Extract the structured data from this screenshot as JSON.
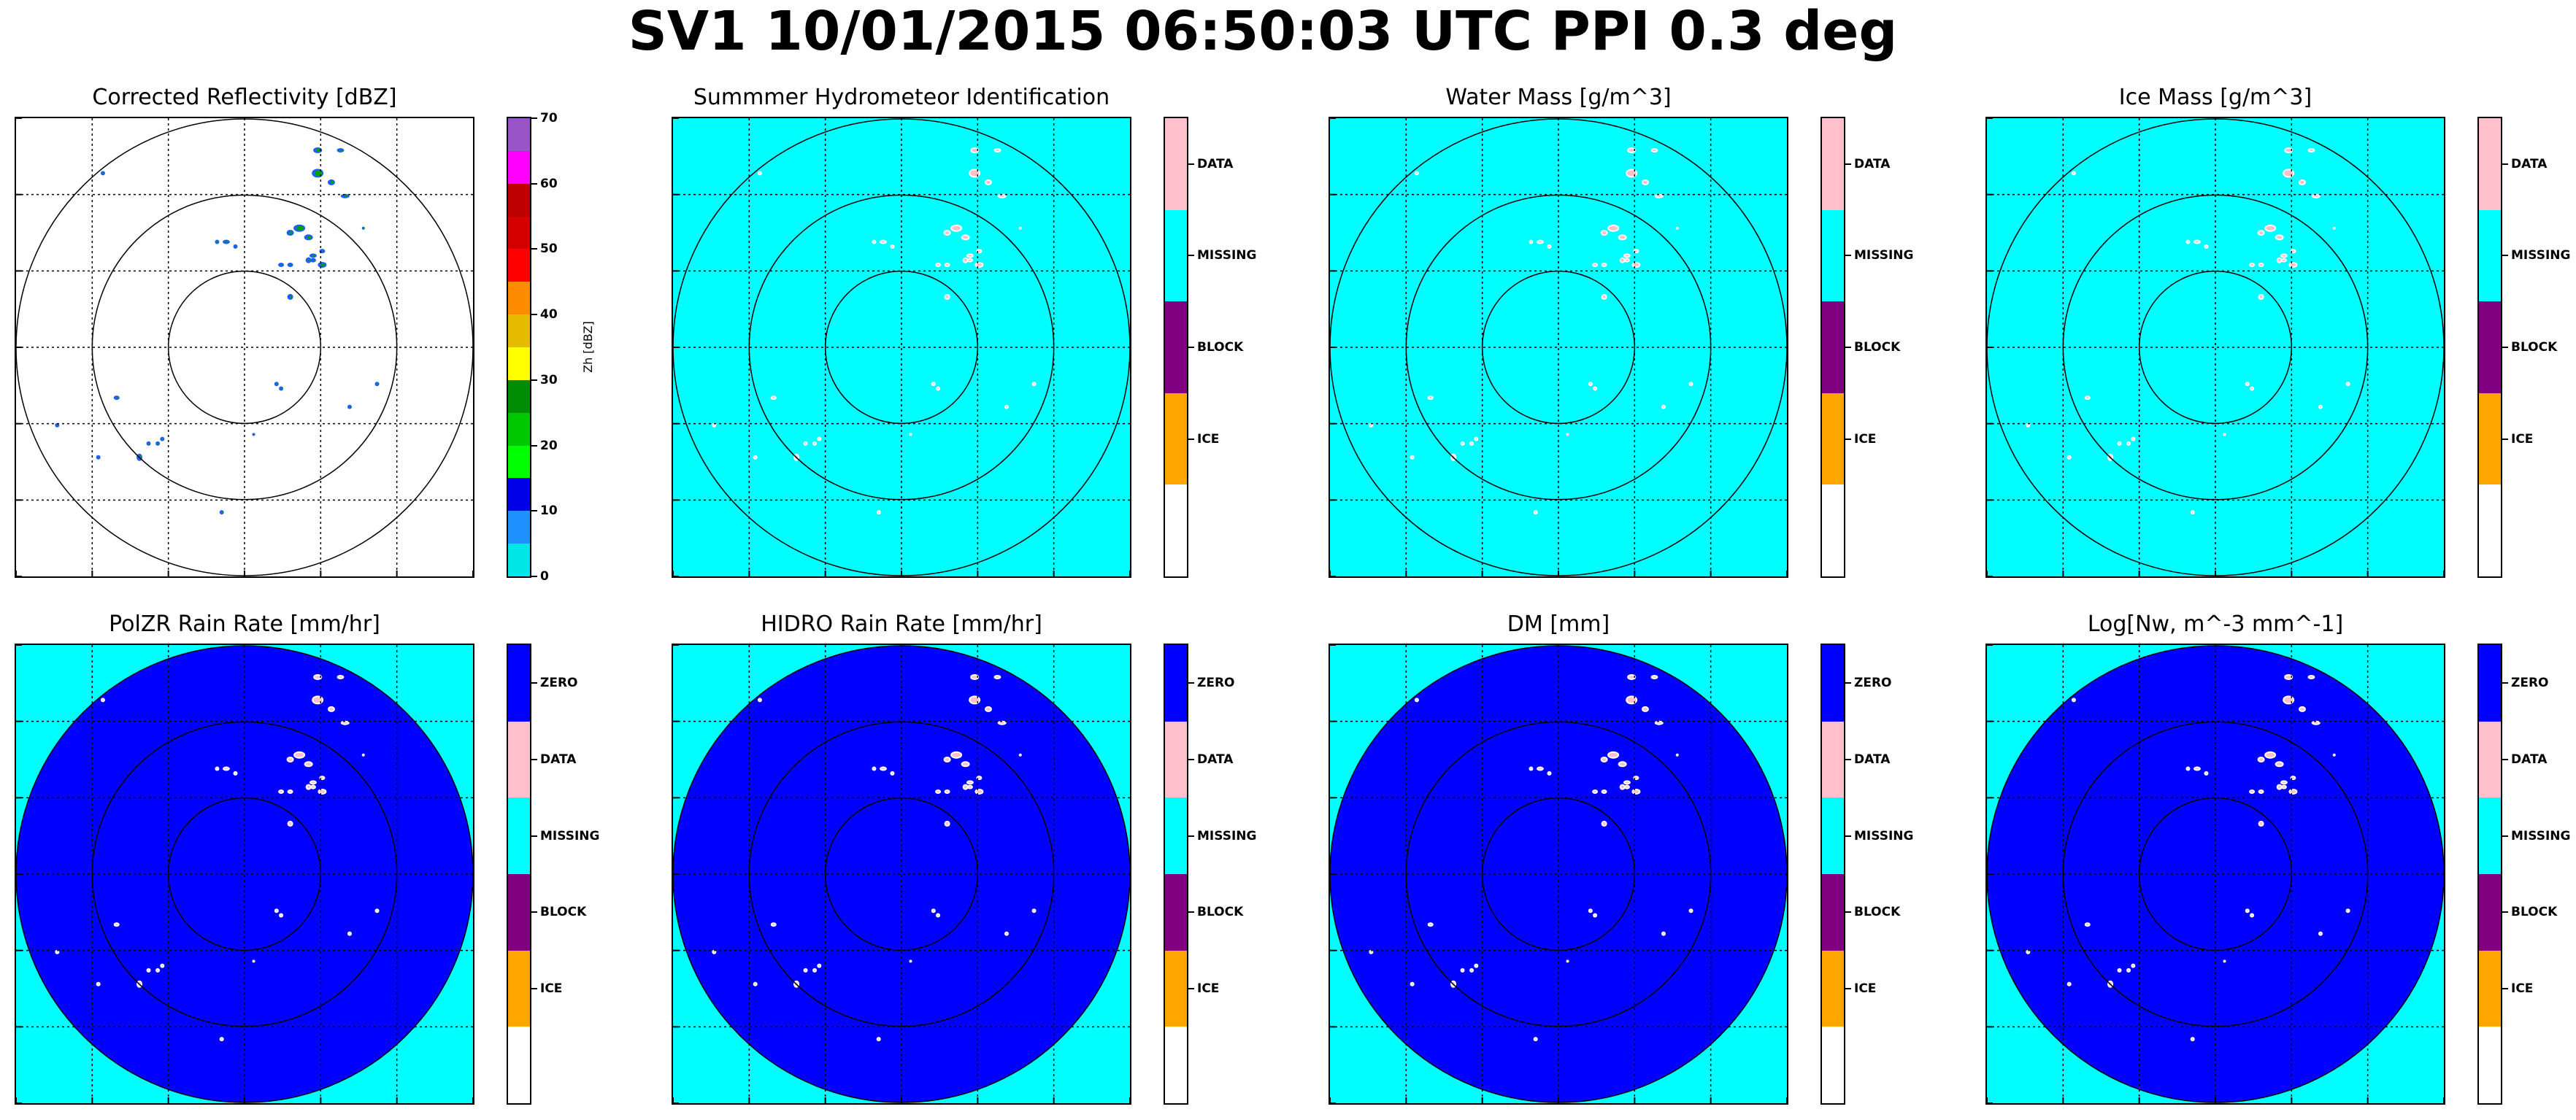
{
  "suptitle": "SV1 10/01/2015 06:50:03 UTC PPI 0.3 deg",
  "colors": {
    "cyan": "#00ffff",
    "blue": "#0000ff",
    "pink": "#ffc0cb",
    "purple": "#800080",
    "orange": "#ffa500",
    "white": "#ffffff"
  },
  "panels": [
    {
      "title": "Corrected Reflectivity [dBZ]",
      "background": "reflectivity",
      "colorbar": {
        "type": "continuous",
        "label": "Zh [dBZ]",
        "ticks": [
          "0",
          "10",
          "20",
          "30",
          "40",
          "50",
          "60",
          "70"
        ],
        "colors": [
          "#00e5e5",
          "#1e90ff",
          "#0000e6",
          "#00ff00",
          "#00c800",
          "#008c00",
          "#ffff00",
          "#e5bc00",
          "#ff8c00",
          "#ff0000",
          "#d40000",
          "#bd0000",
          "#ff00ff",
          "#9955c8"
        ]
      }
    },
    {
      "title": "Summmer Hydrometeor Identification",
      "background": "cyan",
      "colorbar": {
        "type": "category",
        "labels": [
          "DATA",
          "MISSING",
          "BLOCK",
          "ICE",
          ""
        ],
        "colors": [
          "#ffc0cb",
          "#00ffff",
          "#800080",
          "#ffa500",
          "#ffffff"
        ]
      }
    },
    {
      "title": "Water Mass [g/m^3]",
      "background": "cyan",
      "colorbar": {
        "type": "category",
        "labels": [
          "DATA",
          "MISSING",
          "BLOCK",
          "ICE",
          ""
        ],
        "colors": [
          "#ffc0cb",
          "#00ffff",
          "#800080",
          "#ffa500",
          "#ffffff"
        ]
      }
    },
    {
      "title": "Ice Mass [g/m^3]",
      "background": "cyan",
      "colorbar": {
        "type": "category",
        "labels": [
          "DATA",
          "MISSING",
          "BLOCK",
          "ICE",
          ""
        ],
        "colors": [
          "#ffc0cb",
          "#00ffff",
          "#800080",
          "#ffa500",
          "#ffffff"
        ]
      }
    },
    {
      "title": "PolZR Rain Rate [mm/hr]",
      "background": "blue-disc",
      "colorbar": {
        "type": "category",
        "labels": [
          "ZERO",
          "DATA",
          "MISSING",
          "BLOCK",
          "ICE",
          ""
        ],
        "colors": [
          "#0000ff",
          "#ffc0cb",
          "#00ffff",
          "#800080",
          "#ffa500",
          "#ffffff"
        ]
      }
    },
    {
      "title": "HIDRO Rain Rate [mm/hr]",
      "background": "blue-disc",
      "colorbar": {
        "type": "category",
        "labels": [
          "ZERO",
          "DATA",
          "MISSING",
          "BLOCK",
          "ICE",
          ""
        ],
        "colors": [
          "#0000ff",
          "#ffc0cb",
          "#00ffff",
          "#800080",
          "#ffa500",
          "#ffffff"
        ]
      }
    },
    {
      "title": "DM [mm]",
      "background": "blue-disc",
      "colorbar": {
        "type": "category",
        "labels": [
          "ZERO",
          "DATA",
          "MISSING",
          "BLOCK",
          "ICE",
          ""
        ],
        "colors": [
          "#0000ff",
          "#ffc0cb",
          "#00ffff",
          "#800080",
          "#ffa500",
          "#ffffff"
        ]
      }
    },
    {
      "title": "Log[Nw, m^-3 mm^-1]",
      "background": "blue-disc",
      "colorbar": {
        "type": "category",
        "labels": [
          "ZERO",
          "DATA",
          "MISSING",
          "BLOCK",
          "ICE",
          ""
        ],
        "colors": [
          "#0000ff",
          "#ffc0cb",
          "#00ffff",
          "#800080",
          "#ffa500",
          "#ffffff"
        ]
      }
    }
  ],
  "chart_data": {
    "type": "heatmap",
    "title": "SV1 10/01/2015 06:50:03 UTC PPI 0.3 deg",
    "grid": true,
    "range_rings": 3,
    "reflectivity_colorbar": {
      "label": "Zh [dBZ]",
      "range": [
        0,
        70
      ],
      "ticks": [
        0,
        10,
        20,
        30,
        40,
        50,
        60,
        70
      ]
    },
    "category_colorbar_top_row": [
      "DATA",
      "MISSING",
      "BLOCK",
      "ICE"
    ],
    "category_colorbar_bottom_row": [
      "ZERO",
      "DATA",
      "MISSING",
      "BLOCK",
      "ICE"
    ]
  }
}
